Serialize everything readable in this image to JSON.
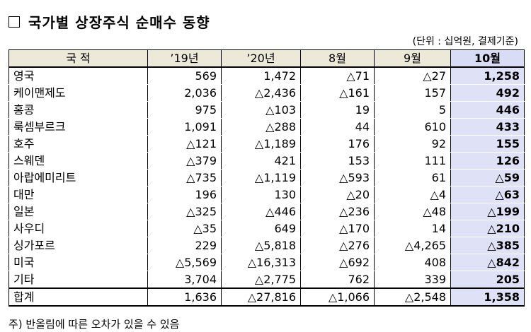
{
  "title": "국가별 상장주식 순매수 동향",
  "unit": "(단위 : 십억원, 결제기준)",
  "headers": [
    "국 적",
    "’19년",
    "’20년",
    "8월",
    "9월",
    "10월"
  ],
  "rows": [
    {
      "name": "영국",
      "v": [
        "569",
        "1,472",
        "△71",
        "△27",
        "1,258"
      ]
    },
    {
      "name": "케이맨제도",
      "v": [
        "2,036",
        "△2,436",
        "△161",
        "157",
        "492"
      ]
    },
    {
      "name": "홍콩",
      "v": [
        "975",
        "△103",
        "19",
        "5",
        "446"
      ]
    },
    {
      "name": "룩셈부르크",
      "v": [
        "1,091",
        "△288",
        "44",
        "610",
        "433"
      ]
    },
    {
      "name": "호주",
      "v": [
        "△121",
        "△1,189",
        "176",
        "92",
        "155"
      ]
    },
    {
      "name": "스웨덴",
      "v": [
        "△379",
        "421",
        "153",
        "111",
        "126"
      ]
    },
    {
      "name": "아랍에미리트",
      "v": [
        "△735",
        "△1,119",
        "△593",
        "61",
        "△59"
      ]
    },
    {
      "name": "대만",
      "v": [
        "196",
        "130",
        "△20",
        "△4",
        "△63"
      ]
    },
    {
      "name": "일본",
      "v": [
        "△325",
        "△446",
        "△236",
        "△48",
        "△199"
      ]
    },
    {
      "name": "사우디",
      "v": [
        "△35",
        "649",
        "△170",
        "14",
        "△210"
      ]
    },
    {
      "name": "싱가포르",
      "v": [
        "229",
        "△5,818",
        "△276",
        "△4,265",
        "△385"
      ]
    },
    {
      "name": "미국",
      "v": [
        "△5,569",
        "△16,313",
        "△692",
        "408",
        "△842"
      ]
    },
    {
      "name": "기타",
      "v": [
        "3,704",
        "△2,775",
        "762",
        "339",
        "205"
      ]
    }
  ],
  "total": {
    "name": "합계",
    "v": [
      "1,636",
      "△27,816",
      "△1,066",
      "△2,548",
      "1,358"
    ]
  },
  "note": "주) 반올림에 따른 오차가 있을 수 있음"
}
